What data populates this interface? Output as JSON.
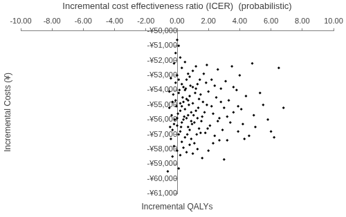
{
  "chart_data": {
    "type": "scatter",
    "title": "Incremental cost effectiveness ratio (ICER)  (probabilistic)",
    "x_label": "Incremental QALYs",
    "y_label": "Incremental Costs (¥)",
    "color": "#000000",
    "marker": "diamond",
    "grid": false,
    "xlim": [
      -10,
      10
    ],
    "xticks": [
      {
        "value": -10,
        "label": "-10.00"
      },
      {
        "value": -8,
        "label": "-8.00"
      },
      {
        "value": -6,
        "label": "-6.00"
      },
      {
        "value": -4,
        "label": "-4.00"
      },
      {
        "value": -2,
        "label": "-2.00"
      },
      {
        "value": 0,
        "label": "0.00"
      },
      {
        "value": 2,
        "label": "2.00"
      },
      {
        "value": 4,
        "label": "4.00"
      },
      {
        "value": 6,
        "label": "6.00"
      },
      {
        "value": 8,
        "label": "8.00"
      },
      {
        "value": 10,
        "label": "10.00"
      }
    ],
    "ylim": [
      -61000,
      -50000
    ],
    "yticks": [
      {
        "value": -61000,
        "label": "-¥61,000"
      },
      {
        "value": -60000,
        "label": "-¥60,000"
      },
      {
        "value": -59000,
        "label": "-¥59,000"
      },
      {
        "value": -58000,
        "label": "-¥58,000"
      },
      {
        "value": -57000,
        "label": "-¥57,000"
      },
      {
        "value": -56000,
        "label": "-¥56,000"
      },
      {
        "value": -55000,
        "label": "-¥55,000"
      },
      {
        "value": -54000,
        "label": "-¥54,000"
      },
      {
        "value": -53000,
        "label": "-¥53,000"
      },
      {
        "value": -52000,
        "label": "-¥52,000"
      },
      {
        "value": -51000,
        "label": "-¥51,000"
      },
      {
        "value": -50000,
        "label": "-¥50,000"
      }
    ],
    "x": [
      -0.5,
      -0.3,
      -0.2,
      -0.1,
      0.0,
      0.1,
      0.2,
      0.3,
      0.4,
      0.5,
      0.6,
      0.7,
      0.8,
      0.9,
      1.0,
      1.1,
      1.2,
      1.3,
      1.4,
      1.5,
      1.6,
      1.7,
      1.8,
      1.9,
      2.0,
      2.1,
      2.2,
      2.3,
      2.4,
      2.5,
      2.6,
      2.7,
      2.8,
      2.9,
      3.0,
      3.1,
      3.2,
      3.3,
      3.4,
      3.5,
      3.6,
      3.8,
      3.9,
      4.0,
      4.1,
      4.3,
      4.4,
      4.6,
      4.8,
      4.9,
      5.0,
      5.3,
      5.5,
      5.8,
      6.0,
      6.2,
      6.5,
      6.8,
      -0.4,
      -0.6,
      -0.3,
      0.1,
      0.0,
      0.1,
      -0.1,
      0.2,
      -0.2,
      0.3,
      0.5,
      -0.4,
      -0.2,
      0.0,
      0.2,
      0.4,
      0.6,
      0.8,
      1.0,
      1.3,
      1.6,
      2.0,
      3.0,
      -0.5,
      -0.3,
      -0.1,
      0.0,
      0.1,
      0.2,
      0.3,
      0.4,
      0.5,
      0.6,
      0.7,
      0.8,
      0.9,
      1.0,
      1.1,
      1.2,
      1.3,
      1.4,
      1.5,
      0.05,
      0.15,
      0.25,
      0.35,
      0.45,
      0.55,
      0.65,
      0.75,
      0.85,
      0.95,
      -0.05,
      -0.15,
      -0.25,
      -0.35,
      -0.45,
      1.05,
      1.15,
      1.25,
      1.35,
      1.45,
      1.55,
      1.65,
      1.75,
      1.85,
      1.95,
      2.2,
      2.4,
      2.6,
      2.8,
      3.2,
      3.6,
      3.9,
      4.2,
      0.3,
      0.7,
      1.2,
      1.9,
      2.3,
      2.7,
      0.0,
      0.2,
      0.4,
      0.6,
      0.8,
      1.0,
      0.1,
      0.3,
      0.5,
      0.7,
      0.9
    ],
    "values": [
      -55200,
      -54800,
      -56300,
      -53500,
      -55900,
      -54200,
      -56800,
      -55100,
      -53800,
      -57200,
      -54600,
      -55700,
      -53100,
      -56100,
      -54900,
      -57600,
      -55400,
      -53600,
      -56600,
      -54300,
      -55800,
      -52900,
      -56900,
      -55000,
      -54100,
      -56400,
      -53300,
      -55600,
      -57100,
      -54500,
      -52600,
      -55900,
      -53900,
      -56700,
      -55200,
      -53400,
      -57400,
      -54700,
      -56200,
      -52400,
      -55500,
      -54000,
      -56800,
      -53000,
      -55300,
      -57300,
      -54400,
      -57100,
      -52200,
      -55700,
      -56500,
      -54200,
      -55000,
      -56000,
      -56800,
      -57200,
      -52500,
      -55200,
      -53200,
      -59500,
      -58500,
      -59300,
      -50600,
      -51000,
      -51500,
      -51800,
      -52200,
      -52500,
      -52100,
      -57300,
      -57800,
      -58100,
      -58400,
      -57900,
      -58200,
      -57700,
      -58300,
      -58000,
      -58600,
      -58100,
      -58700,
      -54100,
      -56700,
      -54700,
      -53000,
      -57000,
      -54900,
      -53600,
      -56000,
      -55300,
      -53300,
      -56500,
      -54400,
      -55500,
      -52700,
      -56200,
      -53900,
      -55900,
      -54600,
      -56900,
      -55600,
      -54000,
      -56500,
      -54500,
      -55800,
      -53900,
      -57000,
      -55000,
      -53700,
      -56300,
      -55100,
      -56000,
      -54300,
      -55700,
      -56500,
      -55700,
      -54200,
      -57000,
      -55200,
      -53300,
      -56100,
      -54800,
      -55500,
      -53500,
      -56600,
      -55100,
      -53700,
      -56100,
      -54800,
      -55800,
      -53800,
      -55100,
      -56300,
      -57500,
      -52900,
      -52400,
      -52300,
      -57600,
      -57400,
      -56400,
      -55400,
      -54800,
      -55900,
      -56700,
      -53800,
      -53300,
      -56200,
      -54000,
      -54700,
      -57300
    ]
  }
}
